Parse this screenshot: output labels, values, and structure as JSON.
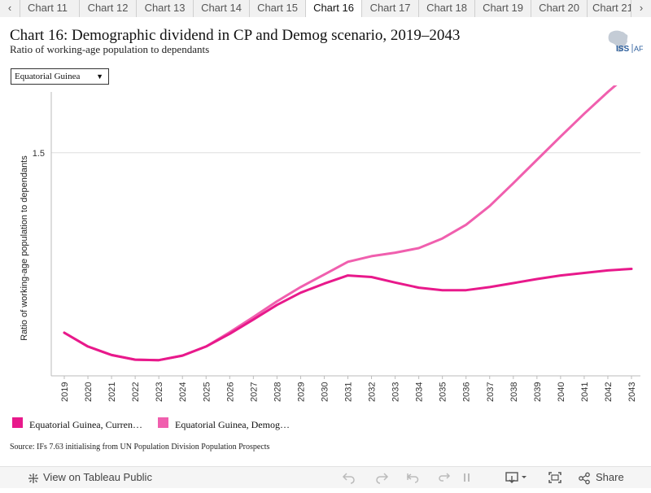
{
  "tabs": [
    "Chart 11",
    "Chart 12",
    "Chart 13",
    "Chart 14",
    "Chart 15",
    "Chart 16",
    "Chart 17",
    "Chart 18",
    "Chart 19",
    "Chart 20",
    "Chart 21"
  ],
  "active_tab": "Chart 16",
  "header": {
    "title": "Chart 16: Demographic dividend in CP and Demog scenario, 2019–2043",
    "subtitle": "Ratio of working-age population to dependants",
    "logo_text": "ISS",
    "logo_suffix": "AF"
  },
  "filter": {
    "selected": "Equatorial Guinea"
  },
  "colors": {
    "current_path": "#e8198b",
    "demog": "#f05fae",
    "grid": "#dddddd"
  },
  "chart_data": {
    "type": "line",
    "title": "",
    "xlabel": "",
    "ylabel": "Ratio of working-age population to dependants",
    "x": [
      2019,
      2020,
      2021,
      2022,
      2023,
      2024,
      2025,
      2026,
      2027,
      2028,
      2029,
      2030,
      2031,
      2032,
      2033,
      2034,
      2035,
      2036,
      2037,
      2038,
      2039,
      2040,
      2041,
      2042,
      2043
    ],
    "ylim": [
      1.06,
      1.62
    ],
    "yticks": [
      1.5
    ],
    "grid": true,
    "series": [
      {
        "name": "Equatorial Guinea, Curren…",
        "values": [
          1.145,
          1.118,
          1.101,
          1.092,
          1.091,
          1.1,
          1.118,
          1.143,
          1.171,
          1.2,
          1.224,
          1.242,
          1.258,
          1.255,
          1.244,
          1.234,
          1.229,
          1.229,
          1.235,
          1.243,
          1.251,
          1.258,
          1.263,
          1.268,
          1.271
        ]
      },
      {
        "name": "Equatorial Guinea, Demog…",
        "values": [
          1.145,
          1.118,
          1.101,
          1.092,
          1.091,
          1.1,
          1.118,
          1.146,
          1.176,
          1.207,
          1.235,
          1.26,
          1.285,
          1.296,
          1.303,
          1.312,
          1.331,
          1.358,
          1.395,
          1.44,
          1.486,
          1.532,
          1.577,
          1.62,
          1.66
        ]
      }
    ],
    "legend_position": "bottom-left"
  },
  "source": "Source: IFs 7.63 initialising from UN Population Division Population Prospects",
  "footer": {
    "view_label": "View on Tableau Public",
    "share_label": "Share"
  }
}
